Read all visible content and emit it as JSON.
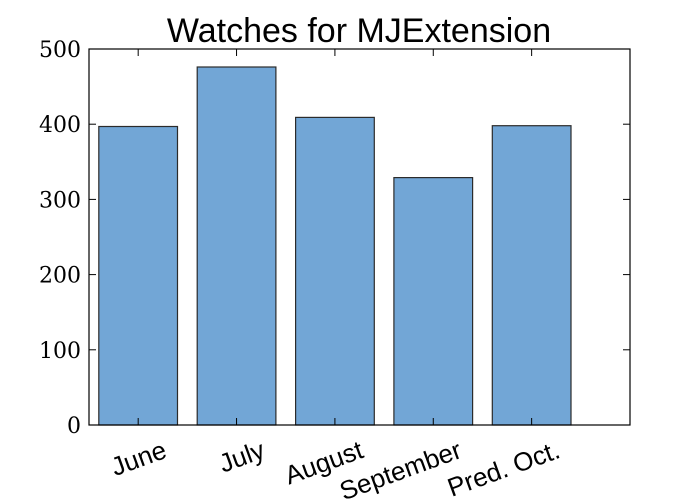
{
  "chart_data": {
    "type": "bar",
    "title": "Watches for MJExtension",
    "categories": [
      "June",
      "July",
      "August",
      "September",
      "Pred. Oct."
    ],
    "values": [
      397,
      476,
      409,
      329,
      398
    ],
    "xlabel": "",
    "ylabel": "",
    "ylim": [
      0,
      500
    ],
    "yticks": [
      0,
      100,
      200,
      300,
      400,
      500
    ],
    "xtick_rotation_deg": -20,
    "grid": false,
    "bar_color": "#72a6d6",
    "bar_edge_color": "#2b2b2b"
  }
}
